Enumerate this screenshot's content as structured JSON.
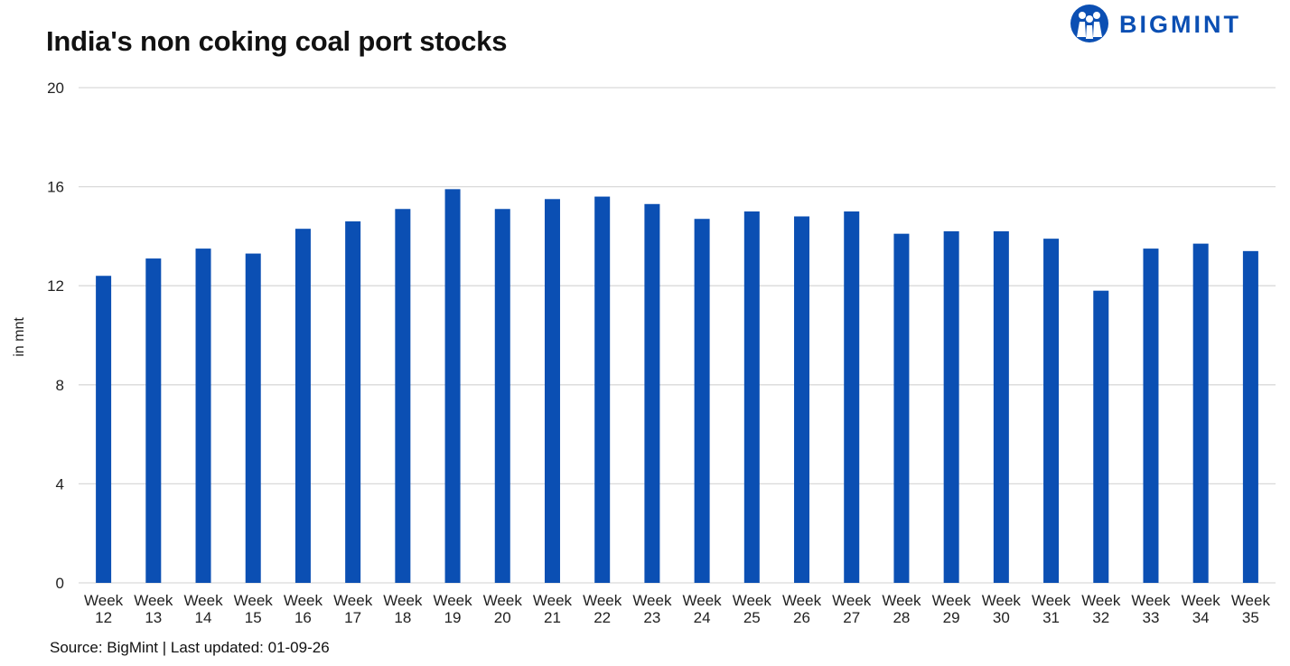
{
  "title": "India's non coking coal port stocks",
  "logo": {
    "text": "BIGMINT",
    "icon": "bigmint-logo-icon",
    "color": "#0b4fb3"
  },
  "source": "Source: BigMint | Last updated: 01-09-26",
  "colors": {
    "bar": "#0b4fb3",
    "grid": "#d9d9d9"
  },
  "chart_data": {
    "type": "bar",
    "categories": [
      "Week 12",
      "Week 13",
      "Week 14",
      "Week 15",
      "Week 16",
      "Week 17",
      "Week 18",
      "Week 19",
      "Week 20",
      "Week 21",
      "Week 22",
      "Week 23",
      "Week 24",
      "Week 25",
      "Week 26",
      "Week 27",
      "Week 28",
      "Week 29",
      "Week 30",
      "Week 31",
      "Week 32",
      "Week 33",
      "Week 34",
      "Week 35"
    ],
    "values": [
      12.4,
      13.1,
      13.5,
      13.3,
      14.3,
      14.6,
      15.1,
      15.9,
      15.1,
      15.5,
      15.6,
      15.3,
      14.7,
      15.0,
      14.8,
      15.0,
      14.1,
      14.2,
      14.2,
      13.9,
      11.8,
      13.5,
      13.7,
      13.4
    ],
    "ylabel": "in mnt",
    "xlabel": "",
    "ylim": [
      0,
      20
    ],
    "yticks": [
      0,
      4,
      8,
      12,
      16,
      20
    ],
    "grid": true,
    "legend": "none"
  }
}
